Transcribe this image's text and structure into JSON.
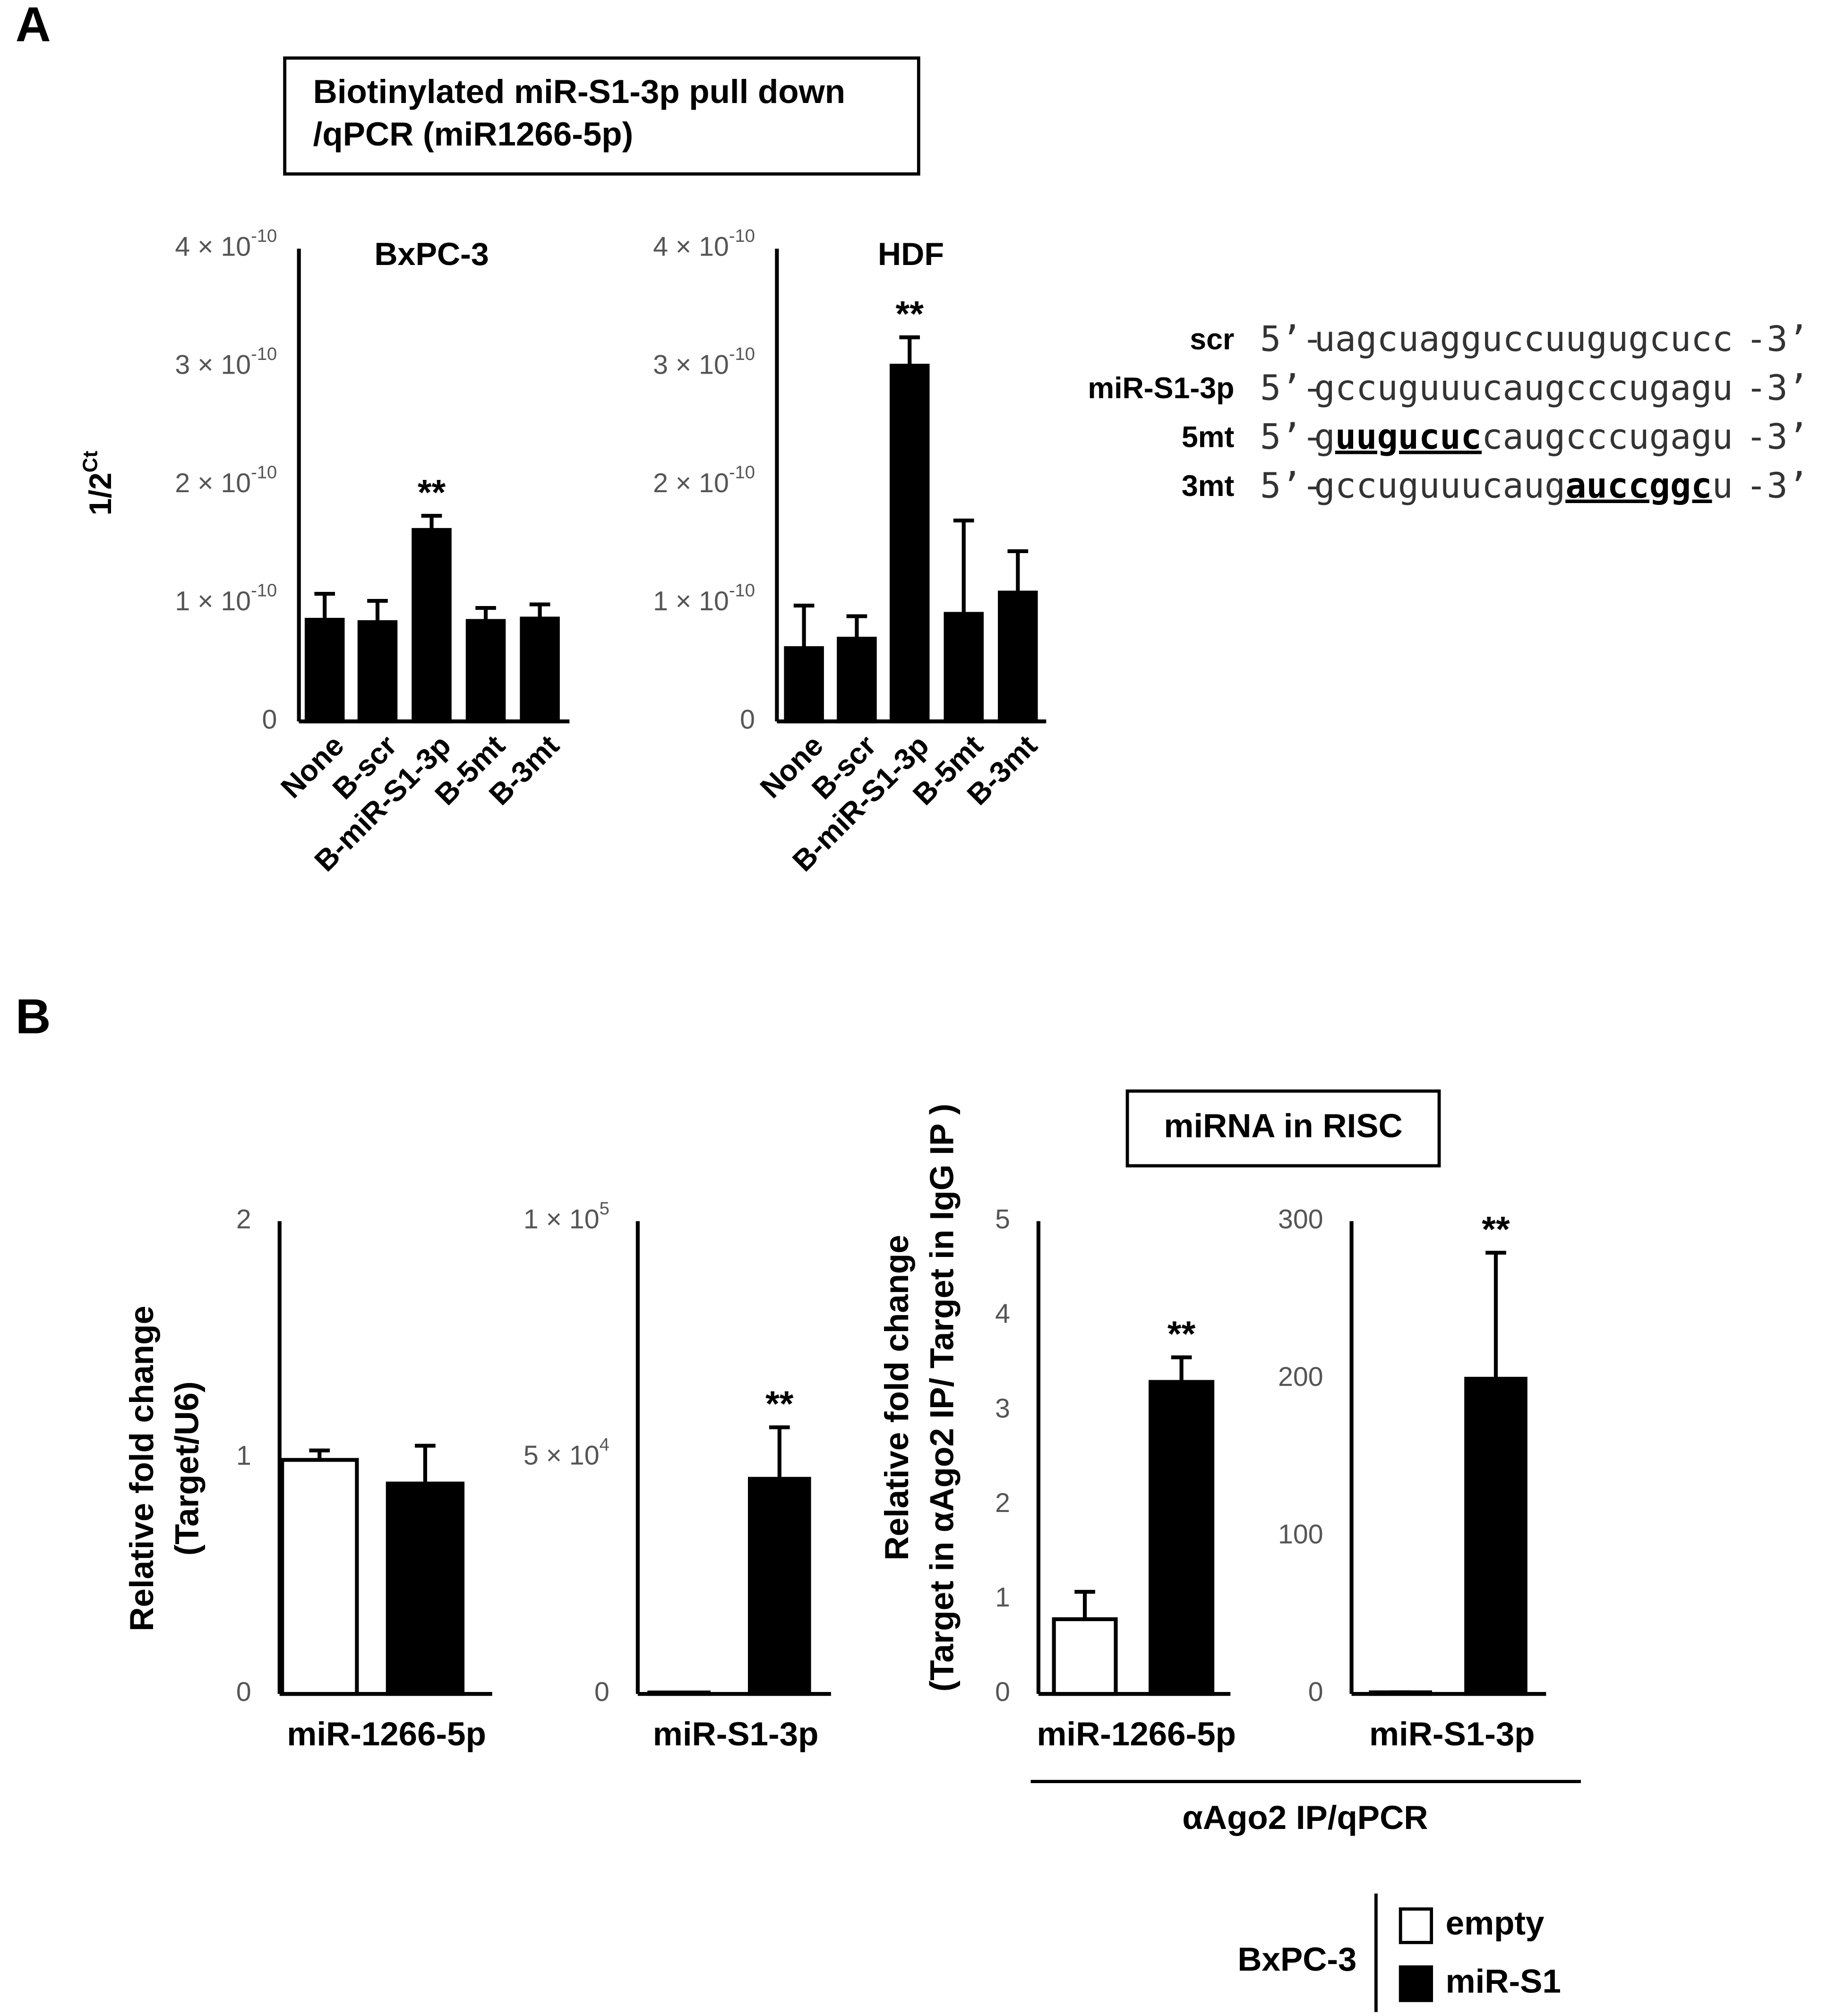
{
  "panels": {
    "a": "A",
    "b": "B"
  },
  "boxes": {
    "a": [
      "Biotinylated miR-S1-3p pull down",
      "/qPCR (miR1266-5p)"
    ],
    "b": "miRNA in RISC"
  },
  "group_label": "αAgo2 IP/qPCR",
  "legend": {
    "title": "BxPC-3"
  },
  "sequences": [
    {
      "name": "scr",
      "prefix": "5’-",
      "parts": [
        "uagcuagguccuugugcucc"
      ],
      "suffix": "-3’"
    },
    {
      "name": "miR-S1-3p",
      "prefix": "5’-",
      "parts": [
        "gccuguuucaugcccugagu"
      ],
      "suffix": "-3’"
    },
    {
      "name": "5mt",
      "prefix": "5’-",
      "parts": [
        "g",
        "uugucuc",
        "caugcccugagu"
      ],
      "suffix": "-3’"
    },
    {
      "name": "3mt",
      "prefix": "5’-",
      "parts": [
        "gccuguuucaug",
        "auccggc",
        "u"
      ],
      "suffix": "-3’"
    }
  ],
  "chart_data": [
    {
      "type": "bar",
      "title": "BxPC-3",
      "ylabel": "1/2",
      "ylabel_sup": "Ct",
      "categories": [
        "None",
        "B-scr",
        "B-miR-S1-3p",
        "B-5mt",
        "B-3mt"
      ],
      "values": [
        8.6e-11,
        8.4e-11,
        1.62e-10,
        8.5e-11,
        8.7e-11
      ],
      "errors": [
        2.2e-11,
        1.8e-11,
        1.2e-11,
        1.1e-11,
        1.2e-11
      ],
      "color": "#000000",
      "ylim": [
        0,
        4e-10
      ],
      "yticks": [
        0,
        {
          "value": 1e-10,
          "label": "1 × 10",
          "exponent": "-10"
        },
        {
          "value": 2e-10,
          "label": "2 × 10",
          "exponent": "-10"
        },
        {
          "value": 3e-10,
          "label": "3 × 10",
          "exponent": "-10"
        },
        {
          "value": 4e-10,
          "label": "4 × 10",
          "exponent": "-10"
        }
      ],
      "annotations": [
        "**"
      ]
    },
    {
      "type": "bar",
      "title": "HDF",
      "categories": [
        "None",
        "B-scr",
        "B-miR-S1-3p",
        "B-5mt",
        "B-3mt"
      ],
      "values": [
        6.2e-11,
        7e-11,
        3.01e-10,
        9.1e-11,
        1.09e-10
      ],
      "errors": [
        3.6e-11,
        1.9e-11,
        2.4e-11,
        7.9e-11,
        3.5e-11
      ],
      "color": "#000000",
      "ylim": [
        0,
        4e-10
      ],
      "yticks": [
        0,
        {
          "value": 1e-10,
          "label": "1 × 10",
          "exponent": "-10"
        },
        {
          "value": 2e-10,
          "label": "2 × 10",
          "exponent": "-10"
        },
        {
          "value": 3e-10,
          "label": "3 × 10",
          "exponent": "-10"
        },
        {
          "value": 4e-10,
          "label": "4 × 10",
          "exponent": "-10"
        }
      ],
      "annotations": [
        "**"
      ]
    },
    {
      "type": "bar",
      "ylabel": [
        "Relative fold change",
        "(Target/U6)"
      ],
      "categories": [
        "miR-1266-5p"
      ],
      "series": [
        {
          "name": "empty",
          "color": "#ffffff",
          "values": [
            0.99
          ],
          "errors": [
            0.04
          ]
        },
        {
          "name": "miR-S1",
          "color": "#000000",
          "values": [
            0.89
          ],
          "errors": [
            0.16
          ]
        }
      ],
      "ylim": [
        0,
        2
      ],
      "yticks": [
        0,
        1,
        2
      ]
    },
    {
      "type": "bar",
      "categories": [
        "miR-S1-3p"
      ],
      "series": [
        {
          "name": "empty",
          "color": "#ffffff",
          "values": [
            300
          ],
          "errors": [
            0
          ]
        },
        {
          "name": "miR-S1",
          "color": "#000000",
          "values": [
            45500
          ],
          "errors": [
            10900
          ]
        }
      ],
      "ylim": [
        0,
        100000
      ],
      "yticks": [
        0,
        {
          "value": 50000,
          "label": "5 × 10",
          "exponent": "4"
        },
        {
          "value": 100000,
          "label": "1 × 10",
          "exponent": "5"
        }
      ],
      "annotations": [
        "**"
      ]
    },
    {
      "type": "bar",
      "ylabel": [
        "Relative fold change",
        "(Target in αAgo2 IP/ Target in IgG IP )"
      ],
      "categories": [
        "miR-1266-5p"
      ],
      "series": [
        {
          "name": "empty",
          "color": "#ffffff",
          "values": [
            0.79
          ],
          "errors": [
            0.29
          ]
        },
        {
          "name": "miR-S1",
          "color": "#000000",
          "values": [
            3.3
          ],
          "errors": [
            0.26
          ]
        }
      ],
      "ylim": [
        0,
        5
      ],
      "yticks": [
        0,
        1,
        2,
        3,
        4,
        5
      ],
      "annotations": [
        "**"
      ]
    },
    {
      "type": "bar",
      "categories": [
        "miR-S1-3p"
      ],
      "series": [
        {
          "name": "empty",
          "color": "#ffffff",
          "values": [
            1
          ],
          "errors": [
            0
          ]
        },
        {
          "name": "miR-S1",
          "color": "#000000",
          "values": [
            200
          ],
          "errors": [
            80
          ]
        }
      ],
      "ylim": [
        0,
        300
      ],
      "yticks": [
        0,
        100,
        200,
        300
      ],
      "annotations": [
        "**"
      ]
    }
  ]
}
